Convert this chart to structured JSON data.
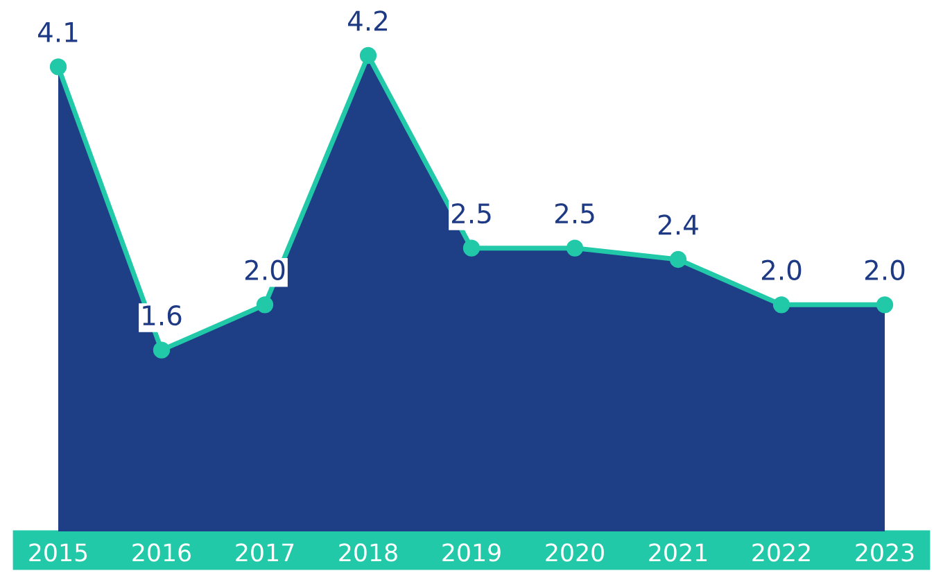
{
  "chart_data": {
    "type": "area",
    "categories": [
      "2015",
      "2016",
      "2017",
      "2018",
      "2019",
      "2020",
      "2021",
      "2022",
      "2023"
    ],
    "series": [
      {
        "color": "#1e3f86",
        "values": [
          4.1,
          1.6,
          2.0,
          4.2,
          2.5,
          2.5,
          2.4,
          2.0,
          2.0
        ],
        "value_labels": [
          "4.1",
          "1.6",
          "2.0",
          "4.2",
          "2.5",
          "2.5",
          "2.4",
          "2.0",
          "2.0"
        ]
      }
    ],
    "marker": "circle",
    "grid": false,
    "legend": false
  }
}
